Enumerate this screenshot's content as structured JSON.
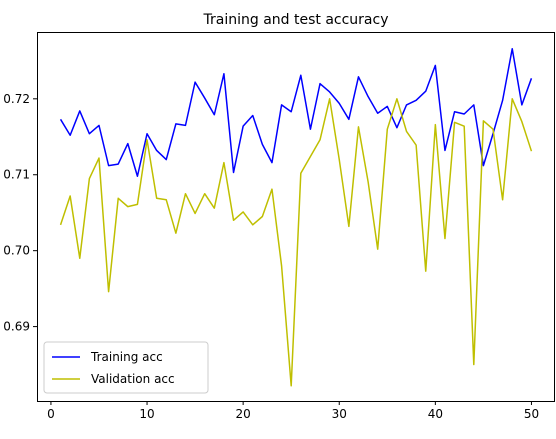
{
  "chart_data": {
    "type": "line",
    "title": "Training and test accuracy",
    "xlabel": "",
    "ylabel": "",
    "xlim": [
      -1.45,
      52.45
    ],
    "ylim": [
      0.6802,
      0.7288
    ],
    "x_ticks": [
      0,
      10,
      20,
      30,
      40,
      50
    ],
    "y_ticks": [
      0.69,
      0.7,
      0.71,
      0.72
    ],
    "grid": false,
    "legend_position": "lower-left",
    "x": [
      1,
      2,
      3,
      4,
      5,
      6,
      7,
      8,
      9,
      10,
      11,
      12,
      13,
      14,
      15,
      16,
      17,
      18,
      19,
      20,
      21,
      22,
      23,
      24,
      25,
      26,
      27,
      28,
      29,
      30,
      31,
      32,
      33,
      34,
      35,
      36,
      37,
      38,
      39,
      40,
      41,
      42,
      43,
      44,
      45,
      46,
      47,
      48,
      49,
      50
    ],
    "series": [
      {
        "name": "Training acc",
        "color": "#0000ff",
        "values": [
          0.7173,
          0.7152,
          0.7184,
          0.7154,
          0.7165,
          0.7112,
          0.7114,
          0.7141,
          0.7098,
          0.7154,
          0.7132,
          0.712,
          0.7167,
          0.7165,
          0.7222,
          0.7201,
          0.7179,
          0.7233,
          0.7103,
          0.7164,
          0.7178,
          0.714,
          0.7116,
          0.7192,
          0.7183,
          0.7231,
          0.716,
          0.722,
          0.7209,
          0.7194,
          0.7173,
          0.7229,
          0.7203,
          0.7181,
          0.719,
          0.7162,
          0.7192,
          0.7198,
          0.721,
          0.7244,
          0.7132,
          0.7183,
          0.718,
          0.7192,
          0.7112,
          0.7154,
          0.7198,
          0.7266,
          0.7192,
          0.7227
        ]
      },
      {
        "name": "Validation acc",
        "color": "#bfbf00",
        "values": [
          0.7034,
          0.7072,
          0.699,
          0.7095,
          0.7122,
          0.6946,
          0.7069,
          0.7058,
          0.7061,
          0.7146,
          0.7069,
          0.7067,
          0.7023,
          0.7075,
          0.7049,
          0.7075,
          0.7056,
          0.7116,
          0.704,
          0.7051,
          0.7034,
          0.7045,
          0.7081,
          0.698,
          0.6822,
          0.7102,
          0.7124,
          0.7146,
          0.72,
          0.712,
          0.7032,
          0.7163,
          0.7091,
          0.7002,
          0.716,
          0.72,
          0.7157,
          0.7139,
          0.6973,
          0.7166,
          0.7016,
          0.7169,
          0.7164,
          0.685,
          0.7171,
          0.716,
          0.7067,
          0.72,
          0.717,
          0.7131
        ]
      }
    ]
  }
}
